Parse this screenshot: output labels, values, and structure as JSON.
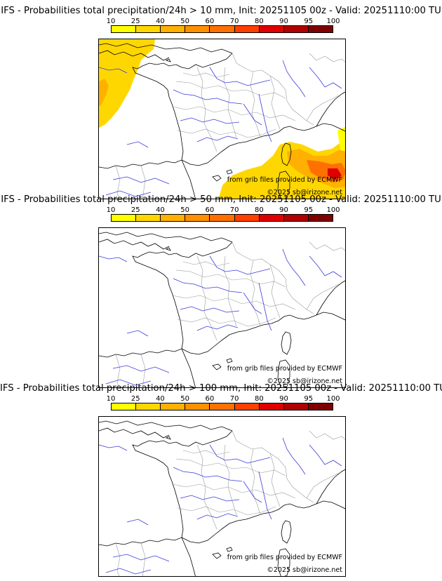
{
  "colorbar": {
    "labels": [
      "10",
      "25",
      "40",
      "50",
      "60",
      "70",
      "80",
      "90",
      "95",
      "100"
    ],
    "colors": [
      "#ffff00",
      "#ffd700",
      "#ffb000",
      "#ff9000",
      "#ff7000",
      "#ff4000",
      "#e00000",
      "#b00000",
      "#800000"
    ]
  },
  "panels": [
    {
      "title": "IFS - Probabilities total precipitation/24h > 10 mm, Init: 20251105 00z - Valid: 20251110:00 TU",
      "credit_source": "from grib files provided by ECMWF",
      "credit_copyright": "©2025 sb@irizone.net",
      "has_precip": true
    },
    {
      "title": "IFS - Probabilities total precipitation/24h > 50 mm, Init: 20251105 00z - Valid: 20251110:00 TU",
      "credit_source": "from grib files provided by ECMWF",
      "credit_copyright": "©2025 sb@irizone.net",
      "has_precip": false
    },
    {
      "title": "IFS - Probabilities total precipitation/24h > 100 mm, Init: 20251105 00z - Valid: 20251110:00 TU",
      "credit_source": "from grib files provided by ECMWF",
      "credit_copyright": "©2025 sb@irizone.net",
      "has_precip": false
    }
  ]
}
